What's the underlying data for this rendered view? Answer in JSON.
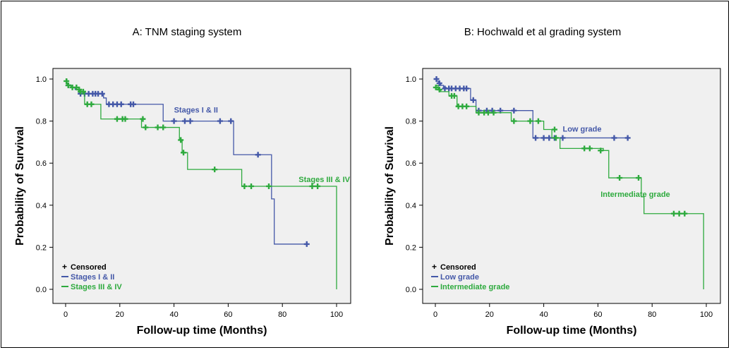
{
  "chart_data": [
    {
      "type": "line",
      "title": "A: TNM staging system",
      "xlabel": "Follow-up time (Months)",
      "ylabel": "Probability of Survival",
      "xlim": [
        0,
        100
      ],
      "ylim": [
        0,
        1
      ],
      "xticks": [
        "0",
        "20",
        "40",
        "60",
        "80",
        "100"
      ],
      "yticks": [
        "0.0",
        "0.2",
        "0.4",
        "0.6",
        "0.8",
        "1.0"
      ],
      "legend": {
        "placement": "bottom-left",
        "censored_label": "Censored"
      },
      "annotations": [
        {
          "text": "Stages I & II",
          "series": 0,
          "x": 40,
          "y": 0.84
        },
        {
          "text": "Stages III & IV",
          "series": 1,
          "x": 86,
          "y": 0.51
        }
      ],
      "series": [
        {
          "name": "Stages I & II",
          "color": "#4458a8",
          "steps": [
            [
              0,
              1.0
            ],
            [
              0.3,
              0.98
            ],
            [
              0.7,
              0.97
            ],
            [
              2,
              0.96
            ],
            [
              3.5,
              0.95
            ],
            [
              5,
              0.93
            ],
            [
              14,
              0.91
            ],
            [
              15,
              0.88
            ],
            [
              36,
              0.8
            ],
            [
              62,
              0.8
            ],
            [
              62,
              0.64
            ],
            [
              75,
              0.64
            ],
            [
              76,
              0.43
            ],
            [
              77,
              0.215
            ],
            [
              89,
              0.215
            ]
          ],
          "censored": [
            [
              1,
              0.97
            ],
            [
              5.5,
              0.93
            ],
            [
              7,
              0.93
            ],
            [
              8.5,
              0.93
            ],
            [
              10,
              0.93
            ],
            [
              11,
              0.93
            ],
            [
              12,
              0.93
            ],
            [
              13.5,
              0.93
            ],
            [
              16,
              0.88
            ],
            [
              17.5,
              0.88
            ],
            [
              19,
              0.88
            ],
            [
              20.5,
              0.88
            ],
            [
              24,
              0.88
            ],
            [
              25,
              0.88
            ],
            [
              40,
              0.8
            ],
            [
              44,
              0.8
            ],
            [
              46,
              0.8
            ],
            [
              57,
              0.8
            ],
            [
              61,
              0.8
            ],
            [
              71,
              0.64
            ],
            [
              89,
              0.215
            ]
          ]
        },
        {
          "name": "Stages III & IV",
          "color": "#2eaa3e",
          "steps": [
            [
              0,
              1.0
            ],
            [
              0.5,
              0.97
            ],
            [
              2,
              0.96
            ],
            [
              4,
              0.95
            ],
            [
              5,
              0.94
            ],
            [
              7,
              0.88
            ],
            [
              13,
              0.81
            ],
            [
              28,
              0.77
            ],
            [
              42,
              0.71
            ],
            [
              43,
              0.65
            ],
            [
              45,
              0.57
            ],
            [
              65,
              0.49
            ],
            [
              100,
              0.49
            ],
            [
              100,
              0.0
            ]
          ],
          "censored": [
            [
              0.3,
              0.99
            ],
            [
              1,
              0.97
            ],
            [
              2.5,
              0.96
            ],
            [
              4,
              0.96
            ],
            [
              5,
              0.95
            ],
            [
              5.5,
              0.94
            ],
            [
              6.5,
              0.94
            ],
            [
              8,
              0.88
            ],
            [
              9.5,
              0.88
            ],
            [
              19,
              0.81
            ],
            [
              21,
              0.81
            ],
            [
              22,
              0.81
            ],
            [
              28.5,
              0.81
            ],
            [
              29.5,
              0.77
            ],
            [
              34,
              0.77
            ],
            [
              36,
              0.77
            ],
            [
              42.5,
              0.71
            ],
            [
              43.5,
              0.65
            ],
            [
              55,
              0.57
            ],
            [
              66,
              0.49
            ],
            [
              68.5,
              0.49
            ],
            [
              75,
              0.49
            ],
            [
              91,
              0.49
            ],
            [
              93,
              0.49
            ]
          ]
        }
      ]
    },
    {
      "type": "line",
      "title": "B: Hochwald et al grading system",
      "xlabel": "Follow-up time (Months)",
      "ylabel": "Probability of Survival",
      "xlim": [
        0,
        100
      ],
      "ylim": [
        0,
        1
      ],
      "xticks": [
        "0",
        "20",
        "40",
        "60",
        "80",
        "100"
      ],
      "yticks": [
        "0.0",
        "0.2",
        "0.4",
        "0.6",
        "0.8",
        "1.0"
      ],
      "legend": {
        "placement": "bottom-left",
        "censored_label": "Censored"
      },
      "annotations": [
        {
          "text": "Low grade",
          "series": 0,
          "x": 47,
          "y": 0.75
        },
        {
          "text": "Intermediate grade",
          "series": 1,
          "x": 61,
          "y": 0.44
        }
      ],
      "series": [
        {
          "name": "Low grade",
          "color": "#4458a8",
          "steps": [
            [
              0,
              1.0
            ],
            [
              0.5,
              0.99
            ],
            [
              1.2,
              0.98
            ],
            [
              2,
              0.97
            ],
            [
              3,
              0.96
            ],
            [
              4,
              0.955
            ],
            [
              13,
              0.9
            ],
            [
              15,
              0.85
            ],
            [
              36,
              0.72
            ],
            [
              71,
              0.72
            ]
          ],
          "censored": [
            [
              0.4,
              1.0
            ],
            [
              1.5,
              0.98
            ],
            [
              3.5,
              0.955
            ],
            [
              5,
              0.955
            ],
            [
              6,
              0.955
            ],
            [
              7.5,
              0.955
            ],
            [
              9,
              0.955
            ],
            [
              10.5,
              0.955
            ],
            [
              11.5,
              0.955
            ],
            [
              14,
              0.9
            ],
            [
              16,
              0.85
            ],
            [
              19,
              0.85
            ],
            [
              21,
              0.85
            ],
            [
              24,
              0.85
            ],
            [
              29,
              0.85
            ],
            [
              37,
              0.72
            ],
            [
              40,
              0.72
            ],
            [
              42,
              0.72
            ],
            [
              44,
              0.72
            ],
            [
              47,
              0.72
            ],
            [
              66,
              0.72
            ],
            [
              71,
              0.72
            ]
          ]
        },
        {
          "name": "Intermediate grade",
          "color": "#2eaa3e",
          "steps": [
            [
              0,
              0.97
            ],
            [
              1,
              0.95
            ],
            [
              2,
              0.94
            ],
            [
              5,
              0.92
            ],
            [
              8,
              0.87
            ],
            [
              15,
              0.84
            ],
            [
              28,
              0.8
            ],
            [
              40,
              0.76
            ],
            [
              43,
              0.72
            ],
            [
              46,
              0.67
            ],
            [
              62,
              0.66
            ],
            [
              64,
              0.53
            ],
            [
              76,
              0.44
            ],
            [
              77,
              0.36
            ],
            [
              99,
              0.36
            ],
            [
              99,
              0.0
            ]
          ],
          "censored": [
            [
              0.2,
              0.96
            ],
            [
              1.5,
              0.95
            ],
            [
              6,
              0.92
            ],
            [
              7,
              0.92
            ],
            [
              8.5,
              0.87
            ],
            [
              10,
              0.87
            ],
            [
              11.5,
              0.87
            ],
            [
              16,
              0.84
            ],
            [
              18,
              0.84
            ],
            [
              19.5,
              0.84
            ],
            [
              21.5,
              0.84
            ],
            [
              29,
              0.8
            ],
            [
              35,
              0.8
            ],
            [
              38,
              0.8
            ],
            [
              44,
              0.76
            ],
            [
              44.5,
              0.72
            ],
            [
              55,
              0.67
            ],
            [
              57,
              0.67
            ],
            [
              61,
              0.66
            ],
            [
              68,
              0.53
            ],
            [
              75,
              0.53
            ],
            [
              88,
              0.36
            ],
            [
              90,
              0.36
            ],
            [
              92,
              0.36
            ]
          ]
        }
      ]
    }
  ]
}
